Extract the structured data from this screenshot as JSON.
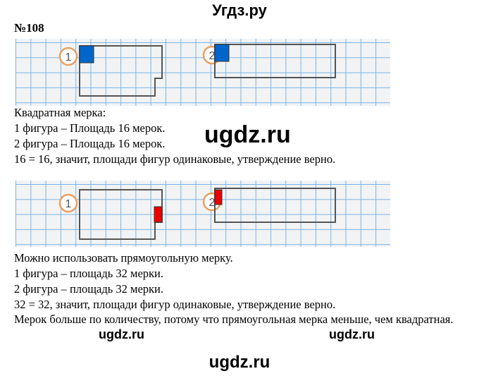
{
  "site_title": "Угдз.ру",
  "task_number": "№108",
  "figure_labels": [
    "1",
    "2"
  ],
  "section1": {
    "lines": [
      "Квадратная мерка:",
      "1 фигура – Площадь 16 мерок.",
      "2 фигура – Площадь 16 мерок.",
      "16 = 16, значит, площади фигур одинаковые, утверждение верно."
    ]
  },
  "section2": {
    "lines": [
      "Можно использовать прямоугольную мерку.",
      "1 фигура – площадь 32 мерки.",
      "2 фигура – площадь 32 мерки.",
      "32 = 32, значит, площади фигур одинаковые, утверждение верно.",
      "Мерок больше по количеству, потому что прямоугольная мерка меньше, чем квадратная."
    ]
  },
  "watermarks": [
    "ugdz.ru",
    "ugdz.ru",
    "ugdz.ru",
    "ugdz.ru"
  ],
  "colors": {
    "square_measure": "#0066cc",
    "rect_measure": "#ee0000",
    "circle": "#e8a060",
    "grid": "#7ab4e6"
  }
}
